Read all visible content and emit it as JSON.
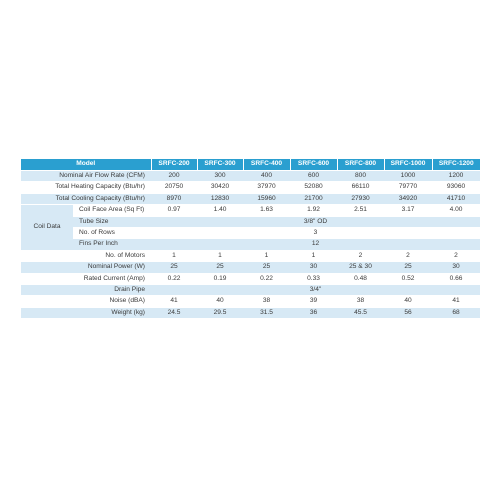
{
  "header": [
    "Model",
    "SRFC-200",
    "SRFC-300",
    "SRFC-400",
    "SRFC-600",
    "SRFC-800",
    "SRFC-1000",
    "SRFC-1200"
  ],
  "rows": {
    "air_flow": {
      "label": "Nominal Air Flow Rate (CFM)",
      "values": [
        "200",
        "300",
        "400",
        "600",
        "800",
        "1000",
        "1200"
      ]
    },
    "heating": {
      "label": "Total Heating Capacity (Btu/hr)",
      "values": [
        "20750",
        "30420",
        "37970",
        "52080",
        "66110",
        "79770",
        "93060"
      ]
    },
    "cooling": {
      "label": "Total Cooling Capacity (Btu/hr)",
      "values": [
        "8970",
        "12830",
        "15960",
        "21700",
        "27930",
        "34920",
        "41710"
      ]
    },
    "coil_data": {
      "label": "Coil Data",
      "face_area": {
        "label": "Coil Face Area (Sq Ft)",
        "values": [
          "0.97",
          "1.40",
          "1.63",
          "1.92",
          "2.51",
          "3.17",
          "4.00"
        ]
      },
      "tube_size": {
        "label": "Tube Size",
        "value": "3/8\" OD"
      },
      "rows": {
        "label": "No. of Rows",
        "value": "3"
      },
      "fins": {
        "label": "Fins Per Inch",
        "value": "12"
      }
    },
    "motors": {
      "label": "No. of Motors",
      "values": [
        "1",
        "1",
        "1",
        "1",
        "2",
        "2",
        "2"
      ]
    },
    "power": {
      "label": "Nominal Power (W)",
      "values": [
        "25",
        "25",
        "25",
        "30",
        "25 & 30",
        "25",
        "30"
      ]
    },
    "current": {
      "label": "Rated Current (Amp)",
      "values": [
        "0.22",
        "0.19",
        "0.22",
        "0.33",
        "0.48",
        "0.52",
        "0.66"
      ]
    },
    "drain": {
      "label": "Drain Pipe",
      "value": "3/4\""
    },
    "noise": {
      "label": "Noise (dBA)",
      "values": [
        "41",
        "40",
        "38",
        "39",
        "38",
        "40",
        "41"
      ]
    },
    "weight": {
      "label": "Weight (kg)",
      "values": [
        "24.5",
        "29.5",
        "31.5",
        "36",
        "45.5",
        "56",
        "68"
      ]
    }
  },
  "colors": {
    "header_bg": "#2a9fd0",
    "stripe": "#d7e9f5"
  }
}
